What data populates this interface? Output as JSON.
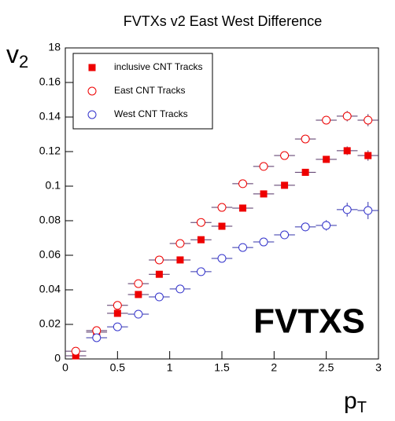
{
  "chart_data": {
    "type": "scatter",
    "title": "FVTXs v2 East West Difference",
    "x_label": {
      "text": "p",
      "sub": "T"
    },
    "y_label": {
      "text": "v",
      "sub": "2"
    },
    "annotation": "FVTXS",
    "xlim": [
      0,
      3
    ],
    "ylim": [
      0,
      0.18
    ],
    "xticks": [
      0,
      0.5,
      1,
      1.5,
      2,
      2.5,
      3
    ],
    "yticks": [
      0,
      0.02,
      0.04,
      0.06,
      0.08,
      0.1,
      0.12,
      0.14,
      0.16,
      {
        "value": 0.18,
        "label": "18"
      }
    ],
    "legend": "top-left",
    "xerr": 0.1,
    "series": [
      {
        "name": "inclusive CNT Tracks",
        "color": "#ee0000",
        "marker": "square",
        "x": [
          0.1,
          0.3,
          0.5,
          0.7,
          0.9,
          1.1,
          1.3,
          1.5,
          1.7,
          1.9,
          2.1,
          2.3,
          2.5,
          2.7,
          2.9
        ],
        "values": [
          0.0018,
          0.0155,
          0.0264,
          0.0373,
          0.049,
          0.0573,
          0.069,
          0.0768,
          0.0873,
          0.0955,
          0.1005,
          0.108,
          0.1155,
          0.1205,
          0.1177
        ],
        "yerr": [
          0.001,
          0.001,
          0.001,
          0.001,
          0.001,
          0.001,
          0.0012,
          0.0012,
          0.0014,
          0.0015,
          0.0016,
          0.0018,
          0.002,
          0.0025,
          0.003
        ]
      },
      {
        "name": "East CNT Tracks",
        "color": "#ee0000",
        "marker": "open-circle",
        "x": [
          0.1,
          0.3,
          0.5,
          0.7,
          0.9,
          1.1,
          1.3,
          1.5,
          1.7,
          1.9,
          2.1,
          2.3,
          2.5,
          2.7,
          2.9
        ],
        "values": [
          0.0045,
          0.0164,
          0.031,
          0.0436,
          0.0573,
          0.0668,
          0.079,
          0.0877,
          0.1014,
          0.1114,
          0.1177,
          0.1273,
          0.1382,
          0.1405,
          0.1382
        ],
        "yerr": [
          0.001,
          0.001,
          0.001,
          0.001,
          0.001,
          0.001,
          0.0012,
          0.0012,
          0.0014,
          0.0015,
          0.0018,
          0.002,
          0.0025,
          0.003,
          0.0035
        ]
      },
      {
        "name": "West CNT Tracks",
        "color": "#3333cc",
        "marker": "open-circle",
        "x": [
          0.3,
          0.5,
          0.7,
          0.9,
          1.1,
          1.3,
          1.5,
          1.7,
          1.9,
          2.1,
          2.3,
          2.5,
          2.7,
          2.9
        ],
        "values": [
          0.0123,
          0.0186,
          0.0259,
          0.0359,
          0.0405,
          0.0505,
          0.0582,
          0.0645,
          0.0677,
          0.0718,
          0.0764,
          0.0773,
          0.0864,
          0.0859
        ],
        "yerr": [
          0.001,
          0.001,
          0.001,
          0.001,
          0.001,
          0.0012,
          0.0012,
          0.0014,
          0.0016,
          0.002,
          0.0025,
          0.003,
          0.004,
          0.005
        ]
      }
    ]
  }
}
